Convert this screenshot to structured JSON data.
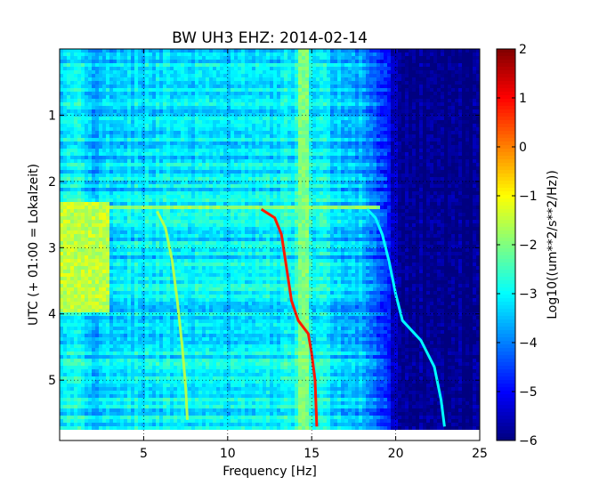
{
  "chart_data": {
    "type": "heatmap",
    "subtype": "spectrogram",
    "title": "BW UH3 EHZ: 2014-02-14",
    "xlabel": "Frequency [Hz]",
    "ylabel": "UTC (+ 01:00 = Lokalzeit)",
    "xlim": [
      0,
      25
    ],
    "ylim": [
      5.75,
      0
    ],
    "y_axis_inverted": true,
    "x_ticks": [
      5,
      10,
      15,
      20,
      25
    ],
    "y_ticks": [
      1,
      2,
      3,
      4,
      5
    ],
    "grid": "dotted",
    "colormap": "jet",
    "colorbar": {
      "label": "Log10((um**2/s**2/Hz))",
      "vmin": -6,
      "vmax": 2,
      "ticks": [
        2,
        1,
        0,
        -1,
        -2,
        -3,
        -4,
        -5,
        -6
      ]
    },
    "background_level_by_frequency": [
      [
        0,
        -3.2
      ],
      [
        1,
        -3.0
      ],
      [
        2,
        -3.5
      ],
      [
        4,
        -3.2
      ],
      [
        8,
        -3.1
      ],
      [
        12,
        -3.2
      ],
      [
        14,
        -2.9
      ],
      [
        16,
        -3.2
      ],
      [
        18,
        -3.6
      ],
      [
        19,
        -4.2
      ],
      [
        20,
        -5.6
      ],
      [
        21,
        -5.9
      ],
      [
        25,
        -5.95
      ]
    ],
    "features": [
      {
        "name": "broadband energy band",
        "time_range": [
          2.3,
          4.0
        ],
        "freq_range": [
          0,
          3
        ],
        "level": -1.5
      },
      {
        "name": "vertical band near 14.5 Hz",
        "freq": 14.5,
        "level": -2.0
      },
      {
        "name": "horizontal event at 2.4",
        "time": 2.4,
        "freq_range": [
          0,
          19
        ],
        "level": -1.8
      }
    ],
    "series": [
      {
        "values": [
          [
            12.0,
            2.42
          ],
          [
            12.8,
            2.55
          ],
          [
            13.2,
            2.8
          ],
          [
            13.5,
            3.3
          ],
          [
            13.8,
            3.8
          ],
          [
            14.2,
            4.1
          ],
          [
            14.8,
            4.3
          ],
          [
            15.0,
            4.6
          ],
          [
            15.2,
            5.0
          ],
          [
            15.3,
            5.7
          ]
        ],
        "level": 0.8
      },
      {
        "values": [
          [
            18.3,
            2.42
          ],
          [
            18.8,
            2.55
          ],
          [
            19.2,
            2.8
          ],
          [
            19.6,
            3.2
          ],
          [
            20.0,
            3.7
          ],
          [
            20.4,
            4.1
          ],
          [
            21.5,
            4.4
          ],
          [
            22.3,
            4.8
          ],
          [
            22.7,
            5.3
          ],
          [
            22.9,
            5.7
          ]
        ],
        "level": -3.0
      },
      {
        "values": [
          [
            5.8,
            2.45
          ],
          [
            6.3,
            2.7
          ],
          [
            6.7,
            3.2
          ],
          [
            7.0,
            3.8
          ],
          [
            7.3,
            4.5
          ],
          [
            7.5,
            5.1
          ],
          [
            7.6,
            5.6
          ]
        ],
        "level": -1.6
      }
    ]
  }
}
